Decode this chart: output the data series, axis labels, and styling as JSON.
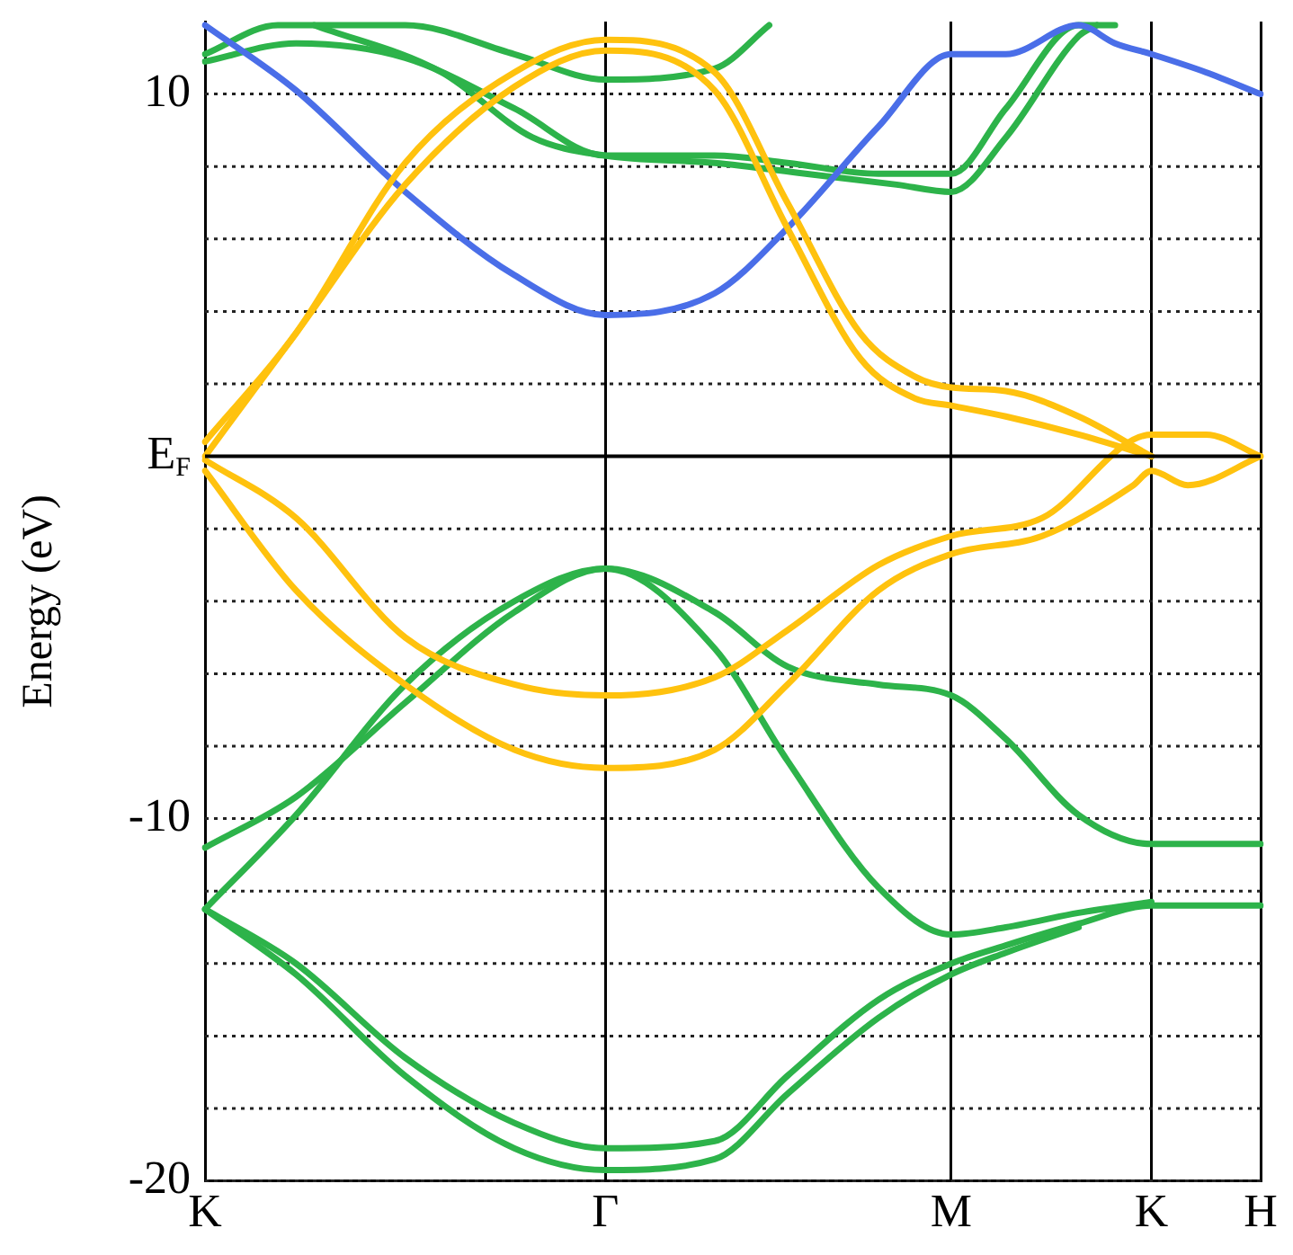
{
  "chart_data": {
    "type": "line",
    "ylabel": "Energy (eV)",
    "ylim": [
      -20,
      12
    ],
    "categories": [
      "K",
      null,
      null,
      null,
      null,
      null,
      null,
      null,
      null,
      null,
      null,
      null,
      null,
      null,
      null,
      null,
      null,
      null,
      null,
      null,
      null,
      null,
      "Γ",
      null,
      null,
      null,
      null,
      null,
      null,
      null,
      null,
      null,
      null,
      null,
      null,
      null,
      null,
      null,
      null,
      null,
      null,
      "M",
      null,
      null,
      null,
      null,
      null,
      null,
      null,
      null,
      null,
      null,
      "K",
      null,
      null,
      null,
      null,
      null,
      "H"
    ],
    "yticks": [
      -20,
      {
        "value": -18,
        "label": null
      },
      {
        "value": -16,
        "label": null
      },
      {
        "value": -14,
        "label": null
      },
      {
        "value": -12,
        "label": null
      },
      -10,
      {
        "value": -8,
        "label": null
      },
      {
        "value": -6,
        "label": null
      },
      {
        "value": -4,
        "label": null
      },
      {
        "value": -2,
        "label": null
      },
      {
        "value": 0,
        "label": "E$_{F}$"
      },
      {
        "value": 2,
        "label": null
      },
      {
        "value": 4,
        "label": null
      },
      {
        "value": 6,
        "label": null
      },
      {
        "value": 8,
        "label": null
      },
      10
    ],
    "grid": true,
    "ref_lines": [
      {
        "axis": "y",
        "value": 0,
        "color": "#000000",
        "line_style": "solid"
      }
    ],
    "series": [
      {
        "color": "#ffc20e",
        "values": [
          0.4,
          null,
          null,
          null,
          null,
          3.4,
          null,
          null,
          null,
          null,
          null,
          8.1,
          null,
          null,
          null,
          null,
          null,
          10.6,
          null,
          null,
          null,
          null,
          11.5,
          null,
          null,
          null,
          null,
          null,
          10.6,
          null,
          null,
          null,
          7.0,
          null,
          null,
          null,
          3.4,
          null,
          null,
          2.2,
          null,
          1.9,
          null,
          null,
          1.8,
          null,
          null,
          null,
          1.1,
          null,
          null,
          null,
          0,
          null,
          null,
          null,
          null,
          null,
          null
        ]
      },
      {
        "color": "#ffc20e",
        "values": [
          0,
          null,
          null,
          null,
          null,
          3.4,
          null,
          null,
          null,
          null,
          null,
          7.5,
          null,
          null,
          null,
          null,
          null,
          10.2,
          null,
          null,
          null,
          null,
          11.2,
          null,
          null,
          null,
          null,
          null,
          10.1,
          null,
          null,
          null,
          6.3,
          null,
          null,
          null,
          2.7,
          null,
          null,
          1.6,
          null,
          1.4,
          null,
          null,
          1.1,
          null,
          null,
          null,
          0.6,
          null,
          null,
          null,
          0,
          null,
          null,
          null,
          null,
          null,
          null
        ]
      },
      {
        "color": "#ffc20e",
        "values": [
          -0.1,
          null,
          null,
          null,
          null,
          -1.7,
          null,
          null,
          null,
          null,
          null,
          -5.0,
          null,
          null,
          null,
          null,
          null,
          -6.3,
          null,
          null,
          null,
          null,
          -6.6,
          null,
          null,
          null,
          null,
          null,
          -6.1,
          null,
          null,
          null,
          -4.8,
          null,
          null,
          null,
          null,
          -3.0,
          null,
          null,
          null,
          -2.2,
          null,
          null,
          null,
          null,
          -1.7,
          null,
          null,
          null,
          null,
          null,
          0.6,
          null,
          null,
          0.6,
          null,
          null,
          0
        ]
      },
      {
        "color": "#ffc20e",
        "values": [
          -0.4,
          null,
          null,
          null,
          null,
          -3.7,
          null,
          null,
          null,
          null,
          null,
          -6.3,
          null,
          null,
          null,
          null,
          null,
          -8.1,
          null,
          null,
          null,
          null,
          -8.6,
          null,
          null,
          null,
          null,
          null,
          -8.1,
          null,
          null,
          null,
          -6.3,
          null,
          null,
          null,
          null,
          -3.7,
          null,
          null,
          null,
          -2.7,
          null,
          null,
          null,
          null,
          -2.2,
          null,
          null,
          null,
          null,
          -0.8,
          -0.4,
          null,
          -0.8,
          null,
          null,
          null,
          0
        ]
      },
      {
        "color": "#4a6ee8",
        "values": [
          11.9,
          null,
          null,
          null,
          null,
          10.1,
          null,
          null,
          null,
          null,
          null,
          7.3,
          null,
          null,
          null,
          null,
          null,
          5.0,
          null,
          null,
          null,
          null,
          3.9,
          null,
          null,
          null,
          null,
          null,
          4.5,
          null,
          null,
          null,
          6.3,
          null,
          null,
          null,
          null,
          9.1,
          null,
          null,
          null,
          11.1,
          null,
          null,
          11.1,
          null,
          null,
          null,
          11.9,
          null,
          11.4,
          null,
          11.1,
          null,
          null,
          10.6,
          null,
          null,
          10.0
        ]
      },
      {
        "color": "#2db34a",
        "values": [
          10.9,
          null,
          null,
          null,
          null,
          11.4,
          null,
          null,
          null,
          null,
          null,
          11.0,
          null,
          null,
          null,
          null,
          null,
          9.6,
          null,
          null,
          null,
          null,
          8.3,
          null,
          null,
          null,
          null,
          null,
          8.3,
          null,
          null,
          null,
          8.1,
          null,
          null,
          null,
          null,
          7.8,
          null,
          null,
          null,
          7.8,
          null,
          null,
          9.6,
          null,
          null,
          null,
          11.9,
          null,
          11.9,
          null,
          null,
          null,
          null,
          null,
          null,
          null,
          null
        ]
      },
      {
        "color": "#2db34a",
        "values": [
          11.1,
          null,
          null,
          null,
          11.9,
          null,
          null,
          null,
          null,
          null,
          null,
          11.9,
          null,
          null,
          null,
          null,
          null,
          11.1,
          null,
          null,
          null,
          null,
          10.4,
          null,
          null,
          null,
          null,
          null,
          10.7,
          null,
          null,
          11.9,
          null,
          null,
          null,
          null,
          null,
          null,
          null,
          null,
          null,
          null,
          null,
          null,
          null,
          null,
          null,
          null,
          null,
          null,
          null,
          null,
          null,
          null,
          null,
          null,
          null,
          null,
          null
        ]
      },
      {
        "color": "#2db34a",
        "values": [
          null,
          null,
          null,
          null,
          null,
          null,
          11.9,
          null,
          null,
          null,
          null,
          null,
          null,
          10.6,
          null,
          null,
          null,
          null,
          8.8,
          null,
          null,
          null,
          8.3,
          null,
          null,
          null,
          null,
          null,
          8.1,
          null,
          null,
          null,
          null,
          7.8,
          null,
          null,
          null,
          null,
          7.5,
          null,
          null,
          7.3,
          null,
          null,
          8.8,
          null,
          null,
          null,
          11.6,
          11.9,
          null,
          null,
          null,
          null,
          null,
          null,
          null,
          null,
          null
        ]
      },
      {
        "color": "#2db34a",
        "values": [
          -10.8,
          null,
          null,
          null,
          null,
          -9.4,
          null,
          null,
          null,
          null,
          null,
          -6.8,
          null,
          null,
          null,
          null,
          null,
          -4.3,
          null,
          null,
          null,
          null,
          -3.1,
          null,
          null,
          null,
          null,
          null,
          -4.3,
          null,
          null,
          null,
          -5.8,
          null,
          null,
          null,
          null,
          -6.3,
          null,
          null,
          null,
          -6.6,
          null,
          null,
          -7.8,
          null,
          null,
          null,
          -9.9,
          null,
          null,
          null,
          -10.7,
          null,
          null,
          null,
          null,
          null,
          -10.7
        ]
      },
      {
        "color": "#2db34a",
        "values": [
          -12.5,
          null,
          null,
          null,
          null,
          -9.9,
          null,
          null,
          null,
          null,
          null,
          -6.3,
          null,
          null,
          null,
          null,
          null,
          -4.0,
          null,
          null,
          null,
          null,
          -3.1,
          null,
          null,
          null,
          null,
          null,
          -5.3,
          null,
          null,
          null,
          -8.4,
          null,
          null,
          null,
          null,
          -11.9,
          null,
          null,
          null,
          -13.2,
          null,
          null,
          -13.0,
          null,
          null,
          null,
          -12.6,
          null,
          null,
          null,
          -12.3,
          null,
          null,
          null,
          null,
          null,
          null
        ]
      },
      {
        "color": "#2db34a",
        "values": [
          -12.5,
          null,
          null,
          null,
          null,
          -14.0,
          null,
          null,
          null,
          null,
          null,
          -16.6,
          null,
          null,
          null,
          null,
          null,
          -18.4,
          null,
          null,
          null,
          null,
          -19.1,
          null,
          null,
          null,
          null,
          null,
          -18.9,
          null,
          null,
          null,
          -17.1,
          null,
          null,
          null,
          null,
          -15.0,
          null,
          null,
          null,
          -14.0,
          null,
          null,
          -13.5,
          null,
          null,
          null,
          -12.9,
          null,
          null,
          null,
          -12.4,
          null,
          null,
          null,
          null,
          null,
          -12.4
        ]
      },
      {
        "color": "#2db34a",
        "values": [
          -12.5,
          null,
          null,
          null,
          null,
          -14.3,
          null,
          null,
          null,
          null,
          null,
          -17.1,
          null,
          null,
          null,
          null,
          null,
          -19.1,
          null,
          null,
          null,
          null,
          -19.7,
          null,
          null,
          null,
          null,
          null,
          -19.4,
          null,
          null,
          null,
          -17.6,
          null,
          null,
          null,
          null,
          -15.5,
          null,
          null,
          null,
          -14.3,
          null,
          null,
          -13.7,
          null,
          null,
          null,
          -13.0,
          null,
          null,
          null,
          null,
          null,
          null,
          null,
          null,
          null,
          null
        ]
      }
    ]
  }
}
